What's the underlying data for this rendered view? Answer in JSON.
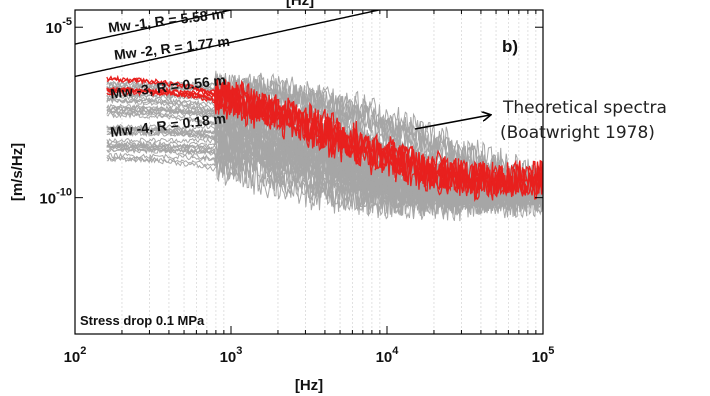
{
  "chart_data": {
    "type": "line",
    "title": "",
    "top_cut_label": "[Hz]",
    "xlabel": "[Hz]",
    "ylabel": "[m/s/Hz]",
    "xscale": "log",
    "yscale": "log",
    "xlim": [
      100,
      100000
    ],
    "ylim": [
      1e-14,
      3.2e-05
    ],
    "grid": "minor-vertical",
    "x_ticks": [
      {
        "value": 100,
        "base": "10",
        "exp": "2"
      },
      {
        "value": 1000,
        "base": "10",
        "exp": "3"
      },
      {
        "value": 10000,
        "base": "10",
        "exp": "4"
      },
      {
        "value": 100000,
        "base": "10",
        "exp": "5"
      }
    ],
    "y_ticks": [
      {
        "value": 1e-05,
        "base": "10",
        "exp": "-5"
      },
      {
        "value": 1e-10,
        "base": "10",
        "exp": "-10"
      }
    ],
    "panel_label": "b)",
    "footer_text": "Stress drop 0.1 MPa",
    "annotation": {
      "line1": "Theoretical spectra",
      "line2": "(Boatwright 1978)"
    },
    "theoretical_curves": [
      {
        "label": "Mw -1,  R = 5.58 m",
        "omega0": 3.5e-06,
        "fc": 40000,
        "color": "#000000",
        "label_at": [
          165,
          7e-06
        ]
      },
      {
        "label": "Mw -2,  R = 1.77 m",
        "omega0": 4e-07,
        "fc": 52000,
        "color": "#000000",
        "label_at": [
          180,
          1.1e-06
        ]
      },
      {
        "label": "Mw -3,  R = 0.56 m",
        "omega0": 3.2e-08,
        "fc": 60000,
        "color": "#000000",
        "label_at": [
          170,
          8e-08
        ]
      },
      {
        "label": "Mw -4,  R = 0.18 m",
        "omega0": 3.6e-09,
        "fc": 68000,
        "color": "#000000",
        "label_at": [
          170,
          6e-09
        ]
      }
    ],
    "observed": {
      "gray_color": "#a6a6a6",
      "red_color": "#e8201e",
      "gray_count": 40,
      "red_count": 6,
      "x_start": 160,
      "x_end": 100000
    }
  }
}
